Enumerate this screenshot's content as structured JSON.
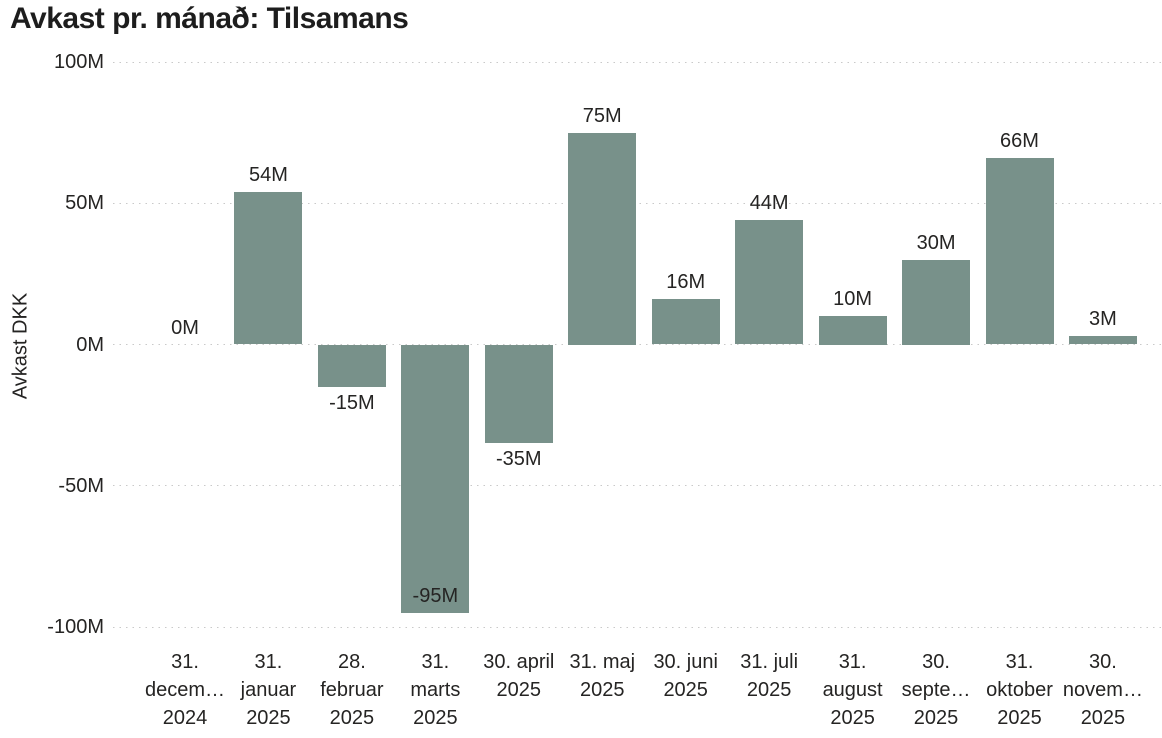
{
  "chart_data": {
    "type": "bar",
    "title": "Avkast pr. mánað: Tilsamans",
    "ylabel": "Avkast DKK",
    "xlabel": "",
    "ylim": [
      -100,
      100
    ],
    "grid": "dotted-horizontal",
    "legend": "none",
    "bar_color": "#78918A",
    "y_ticks": [
      {
        "value": 100,
        "label": "100M"
      },
      {
        "value": 50,
        "label": "50M"
      },
      {
        "value": 0,
        "label": "0M"
      },
      {
        "value": -50,
        "label": "-50M"
      },
      {
        "value": -100,
        "label": "-100M"
      }
    ],
    "categories": [
      {
        "lines": [
          "31.",
          "decem…",
          "2024"
        ]
      },
      {
        "lines": [
          "31.",
          "januar",
          "2025"
        ]
      },
      {
        "lines": [
          "28.",
          "februar",
          "2025"
        ]
      },
      {
        "lines": [
          "31.",
          "marts",
          "2025"
        ]
      },
      {
        "lines": [
          "30. april",
          "2025"
        ]
      },
      {
        "lines": [
          "31. maj",
          "2025"
        ]
      },
      {
        "lines": [
          "30. juni",
          "2025"
        ]
      },
      {
        "lines": [
          "31. juli",
          "2025"
        ]
      },
      {
        "lines": [
          "31.",
          "august",
          "2025"
        ]
      },
      {
        "lines": [
          "30.",
          "septe…",
          "2025"
        ]
      },
      {
        "lines": [
          "31.",
          "oktober",
          "2025"
        ]
      },
      {
        "lines": [
          "30.",
          "novem…",
          "2025"
        ]
      }
    ],
    "values": [
      0,
      54,
      -15,
      -95,
      -35,
      75,
      16,
      44,
      10,
      30,
      66,
      3
    ],
    "value_labels": [
      "0M",
      "54M",
      "-15M",
      "-95M",
      "-35M",
      "75M",
      "16M",
      "44M",
      "10M",
      "30M",
      "66M",
      "3M"
    ]
  }
}
